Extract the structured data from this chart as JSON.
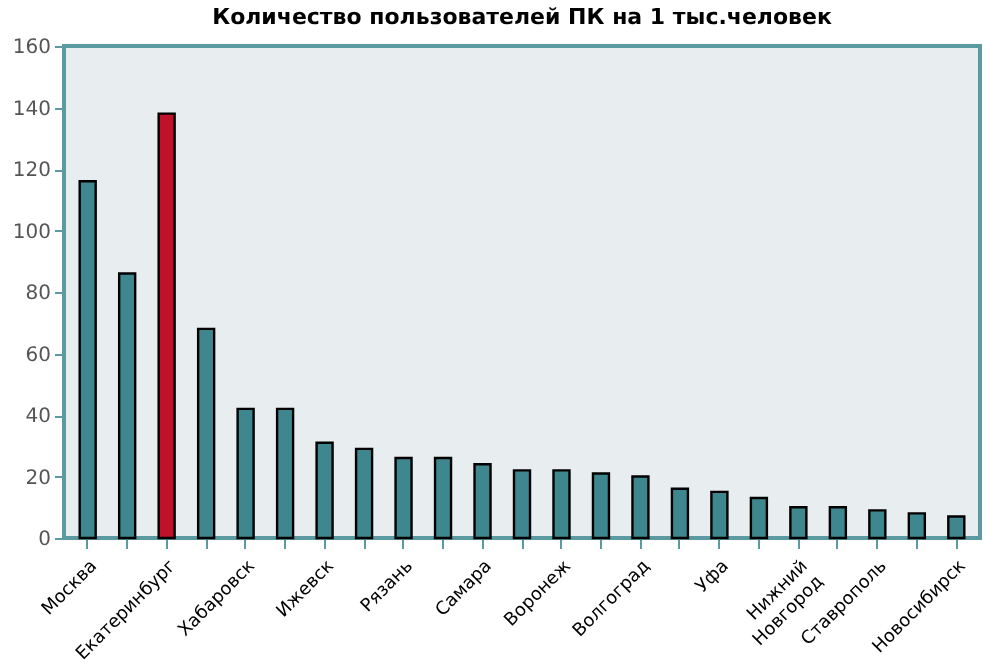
{
  "chart_data": {
    "type": "bar",
    "title": "Количество пользователей ПК на 1 тыс.человек",
    "categories": [
      "Москва",
      null,
      "Екатеринбург",
      null,
      "Хабаровск",
      null,
      "Ижевск",
      null,
      "Рязань",
      null,
      "Самара",
      null,
      "Воронеж",
      null,
      "Волгоград",
      null,
      "Уфа",
      null,
      "Нижний Новгород",
      null,
      "Ставрополь",
      null,
      "Новосибирск"
    ],
    "values": [
      116,
      86,
      138,
      68,
      42,
      42,
      31,
      29,
      26,
      26,
      24,
      22,
      22,
      21,
      20,
      16,
      15,
      13,
      10,
      10,
      9,
      8,
      7
    ],
    "colors": [
      "#3f878f",
      "#3f878f",
      "#c0102a",
      "#3f878f",
      "#3f878f",
      "#3f878f",
      "#3f878f",
      "#3f878f",
      "#3f878f",
      "#3f878f",
      "#3f878f",
      "#3f878f",
      "#3f878f",
      "#3f878f",
      "#3f878f",
      "#3f878f",
      "#3f878f",
      "#3f878f",
      "#3f878f",
      "#3f878f",
      "#3f878f",
      "#3f878f",
      "#3f878f"
    ],
    "ylim": [
      0,
      160
    ],
    "yticks": [
      0,
      20,
      40,
      60,
      80,
      100,
      120,
      140,
      160
    ],
    "grid": false
  }
}
